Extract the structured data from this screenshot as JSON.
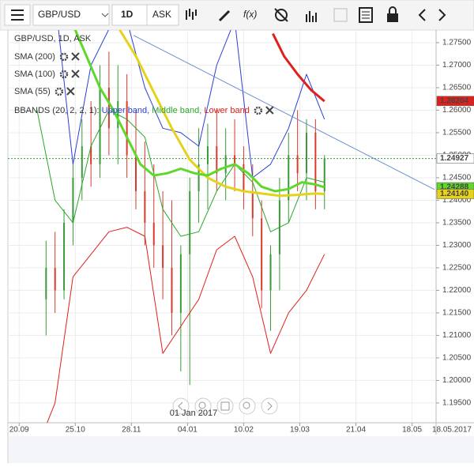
{
  "toolbar": {
    "symbol": "GBP/USD",
    "period": "1D",
    "price_side": "ASK",
    "function_button": "f(x)"
  },
  "chart_data": {
    "type": "candlestick",
    "legend_title": "GBP/USD, 1D, ASK",
    "xlim": [
      -5,
      185
    ],
    "xticks": [
      {
        "value": 0,
        "label": "20.09"
      },
      {
        "value": 25,
        "label": "25.10"
      },
      {
        "value": 50,
        "label": "28.11"
      },
      {
        "value": 75,
        "label": "04.01"
      },
      {
        "value": 100,
        "label": "10.02"
      },
      {
        "value": 125,
        "label": "19.03"
      },
      {
        "value": 150,
        "label": "21.04"
      },
      {
        "value": 175,
        "label": "18.05"
      }
    ],
    "end_date_label": "18.05.2017",
    "navigator_date": "01 Jan 2017",
    "ylim": [
      1.1906,
      1.2778
    ],
    "yticks": [
      {
        "value": 1.195,
        "label": "1.19500"
      },
      {
        "value": 1.2,
        "label": "1.20000"
      },
      {
        "value": 1.205,
        "label": "1.20500"
      },
      {
        "value": 1.21,
        "label": "1.21000"
      },
      {
        "value": 1.215,
        "label": "1.21500"
      },
      {
        "value": 1.22,
        "label": "1.22000"
      },
      {
        "value": 1.225,
        "label": "1.22500"
      },
      {
        "value": 1.23,
        "label": "1.23000"
      },
      {
        "value": 1.235,
        "label": "1.23500"
      },
      {
        "value": 1.24,
        "label": "1.24000"
      },
      {
        "value": 1.245,
        "label": "1.24500"
      },
      {
        "value": 1.25,
        "label": "1.25000"
      },
      {
        "value": 1.255,
        "label": "1.25500"
      },
      {
        "value": 1.26,
        "label": "1.26000"
      },
      {
        "value": 1.265,
        "label": "1.26500"
      },
      {
        "value": 1.27,
        "label": "1.27000"
      },
      {
        "value": 1.275,
        "label": "1.27500"
      }
    ],
    "grid": true,
    "up_color": "#3a9a3a",
    "down_color": "#d83a2e",
    "x": [
      12,
      16,
      20,
      24,
      28,
      32,
      36,
      40,
      44,
      48,
      52,
      56,
      60,
      64,
      68,
      72,
      76,
      80,
      84,
      88,
      92,
      96,
      100,
      104,
      108,
      112,
      116,
      120,
      124,
      128,
      132,
      136
    ],
    "open": [
      1.218,
      1.225,
      1.22,
      1.235,
      1.245,
      1.252,
      1.248,
      1.265,
      1.256,
      1.262,
      1.25,
      1.242,
      1.235,
      1.23,
      1.225,
      1.215,
      1.228,
      1.242,
      1.248,
      1.252,
      1.246,
      1.25,
      1.248,
      1.242,
      1.236,
      1.22,
      1.228,
      1.24,
      1.25,
      1.246,
      1.255,
      1.242
    ],
    "high": [
      1.231,
      1.233,
      1.238,
      1.248,
      1.258,
      1.262,
      1.27,
      1.273,
      1.27,
      1.268,
      1.26,
      1.253,
      1.248,
      1.242,
      1.24,
      1.23,
      1.245,
      1.256,
      1.257,
      1.26,
      1.256,
      1.258,
      1.252,
      1.248,
      1.24,
      1.23,
      1.245,
      1.255,
      1.26,
      1.258,
      1.258,
      1.25
    ],
    "low": [
      1.21,
      1.215,
      1.218,
      1.23,
      1.24,
      1.243,
      1.245,
      1.25,
      1.248,
      1.245,
      1.238,
      1.23,
      1.225,
      1.218,
      1.21,
      1.202,
      1.199,
      1.235,
      1.238,
      1.242,
      1.24,
      1.242,
      1.238,
      1.232,
      1.216,
      1.211,
      1.22,
      1.235,
      1.242,
      1.24,
      1.238,
      1.238
    ],
    "close": [
      1.225,
      1.22,
      1.235,
      1.245,
      1.252,
      1.248,
      1.265,
      1.256,
      1.262,
      1.25,
      1.242,
      1.235,
      1.23,
      1.225,
      1.215,
      1.228,
      1.242,
      1.248,
      1.252,
      1.246,
      1.25,
      1.248,
      1.242,
      1.236,
      1.22,
      1.228,
      1.24,
      1.25,
      1.246,
      1.255,
      1.242,
      1.2493
    ],
    "indicators": [
      {
        "name": "SMA (200)",
        "color": "#e0201b",
        "line_width": 3,
        "x": [
          113,
          118,
          124,
          130,
          136
        ],
        "values": [
          1.277,
          1.272,
          1.268,
          1.2645,
          1.262
        ]
      },
      {
        "name": "SMA (100)",
        "color": "#e6d21a",
        "line_width": 3,
        "x": [
          44,
          52,
          60,
          68,
          76,
          84,
          92,
          100,
          108,
          116,
          124,
          132,
          136
        ],
        "values": [
          1.2785,
          1.272,
          1.264,
          1.256,
          1.249,
          1.245,
          1.243,
          1.242,
          1.2415,
          1.241,
          1.2412,
          1.2415,
          1.2414
        ]
      },
      {
        "name": "SMA (55)",
        "color": "#5fd82a",
        "line_width": 3,
        "x": [
          24,
          30,
          36,
          42,
          48,
          54,
          60,
          66,
          72,
          78,
          84,
          90,
          96,
          102,
          108,
          114,
          120,
          126,
          132,
          136
        ],
        "values": [
          1.279,
          1.272,
          1.265,
          1.26,
          1.254,
          1.248,
          1.2455,
          1.246,
          1.247,
          1.246,
          1.2455,
          1.247,
          1.248,
          1.246,
          1.243,
          1.242,
          1.2425,
          1.244,
          1.2435,
          1.2429
        ]
      }
    ],
    "bbands": {
      "name": "BBANDS (20, 2, 2, 1):",
      "x": [
        8,
        16,
        24,
        32,
        40,
        48,
        56,
        64,
        72,
        80,
        88,
        96,
        104,
        112,
        120,
        128,
        136
      ],
      "bands": [
        {
          "name": "Upper band,",
          "color": "#2b3fd6",
          "values": [
            1.31,
            1.285,
            1.248,
            1.27,
            1.278,
            1.28,
            1.265,
            1.256,
            1.255,
            1.252,
            1.27,
            1.28,
            1.245,
            1.248,
            1.256,
            1.268,
            1.258
          ]
        },
        {
          "name": "Middle band,",
          "color": "#2aa82a",
          "values": [
            1.26,
            1.24,
            1.235,
            1.252,
            1.26,
            1.258,
            1.254,
            1.238,
            1.232,
            1.233,
            1.242,
            1.248,
            1.244,
            1.233,
            1.235,
            1.245,
            1.244
          ]
        },
        {
          "name": "Lower band",
          "color": "#e0201b",
          "values": [
            1.185,
            1.195,
            1.223,
            1.228,
            1.233,
            1.234,
            1.232,
            1.206,
            1.212,
            1.218,
            1.229,
            1.232,
            1.223,
            1.206,
            1.215,
            1.22,
            1.228
          ]
        }
      ]
    },
    "trend_line": {
      "color": "#6f8fd0",
      "x": [
        51,
        185
      ],
      "values": [
        1.2766,
        1.2424
      ]
    },
    "last_price_line": {
      "value": 1.24927,
      "color": "#3a9a3a"
    },
    "price_labels": [
      {
        "value": 1.26204,
        "color": "#e0201b",
        "text_color": "#ffffff"
      },
      {
        "value": 1.24927,
        "color": "#ffffff",
        "text_color": "#222222"
      },
      {
        "value": 1.24288,
        "color": "#5fd82a",
        "text_color": "#222222"
      },
      {
        "value": 1.2414,
        "label": "1.24140",
        "color": "#e6d21a",
        "text_color": "#222222"
      }
    ]
  }
}
